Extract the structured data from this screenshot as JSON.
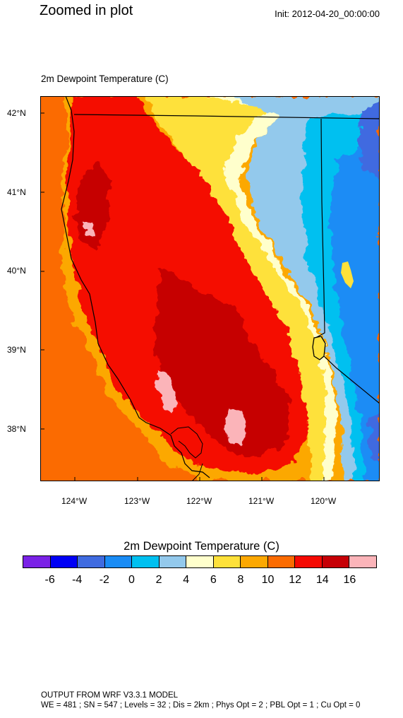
{
  "header": {
    "title": "Zoomed in plot",
    "init": "Init: 2012-04-20_00:00:00"
  },
  "map": {
    "subtitle": "2m Dewpoint Temperature   (C)",
    "lat_labels": [
      "42°N",
      "41°N",
      "40°N",
      "39°N",
      "38°N"
    ],
    "lon_labels": [
      "124°W",
      "123°W",
      "122°W",
      "121°W",
      "120°W"
    ],
    "extent": {
      "lon_min": -124.55,
      "lon_max": -119.2,
      "lat_min": 37.35,
      "lat_max": 42.2
    }
  },
  "colorbar": {
    "title": "2m Dewpoint Temperature  (C)",
    "colors": [
      "#7a22e6",
      "#0000f5",
      "#3f6be0",
      "#1a8cf5",
      "#00c0f0",
      "#93c9ec",
      "#ffffcc",
      "#fee13a",
      "#fca802",
      "#fb6b01",
      "#f50a03",
      "#c60006",
      "#fbb4b9"
    ],
    "labels": [
      "-6",
      "-4",
      "-2",
      "0",
      "2",
      "4",
      "6",
      "8",
      "10",
      "12",
      "14",
      "16"
    ]
  },
  "footer": {
    "line1": "OUTPUT FROM WRF V3.3.1 MODEL",
    "line2": "WE = 481 ; SN = 547 ; Levels = 32 ; Dis = 2km ; Phys Opt = 2 ; PBL Opt = 1 ; Cu Opt = 0"
  }
}
